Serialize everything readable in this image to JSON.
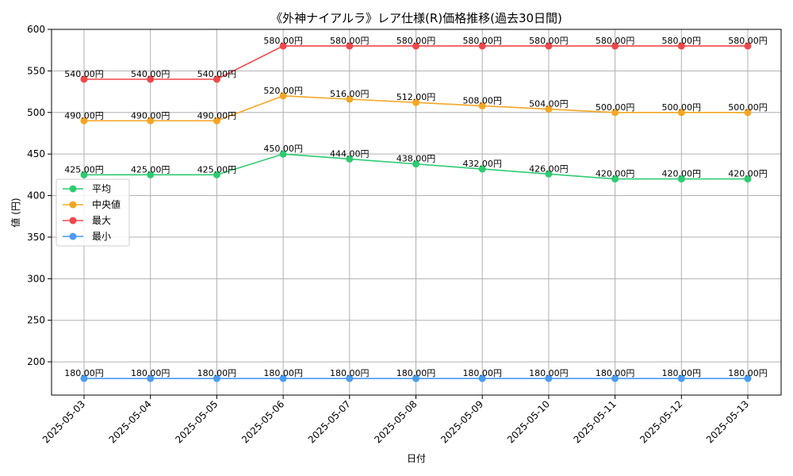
{
  "chart_data": {
    "type": "line",
    "title": "《外神ナイアルラ》レア仕様(R)価格推移(過去30日間)",
    "xlabel": "日付",
    "ylabel": "値 (円)",
    "ylim": [
      160,
      600
    ],
    "yticks": [
      200,
      250,
      300,
      350,
      400,
      450,
      500,
      550,
      600
    ],
    "grid": true,
    "legend_position": "center-left",
    "label_suffix": "円",
    "categories": [
      "2025-05-03",
      "2025-05-04",
      "2025-05-05",
      "2025-05-06",
      "2025-05-07",
      "2025-05-08",
      "2025-05-09",
      "2025-05-10",
      "2025-05-11",
      "2025-05-12",
      "2025-05-13"
    ],
    "series": [
      {
        "name": "平均",
        "color": "#2ecc71",
        "values": [
          425,
          425,
          425,
          450,
          444,
          438,
          432,
          426,
          420,
          420,
          420
        ]
      },
      {
        "name": "中央値",
        "color": "#f5a623",
        "values": [
          490,
          490,
          490,
          520,
          516,
          512,
          508,
          504,
          500,
          500,
          500
        ]
      },
      {
        "name": "最大",
        "color": "#f0484a",
        "values": [
          540,
          540,
          540,
          580,
          580,
          580,
          580,
          580,
          580,
          580,
          580
        ]
      },
      {
        "name": "最小",
        "color": "#4a9cf5",
        "values": [
          180,
          180,
          180,
          180,
          180,
          180,
          180,
          180,
          180,
          180,
          180
        ]
      }
    ]
  }
}
